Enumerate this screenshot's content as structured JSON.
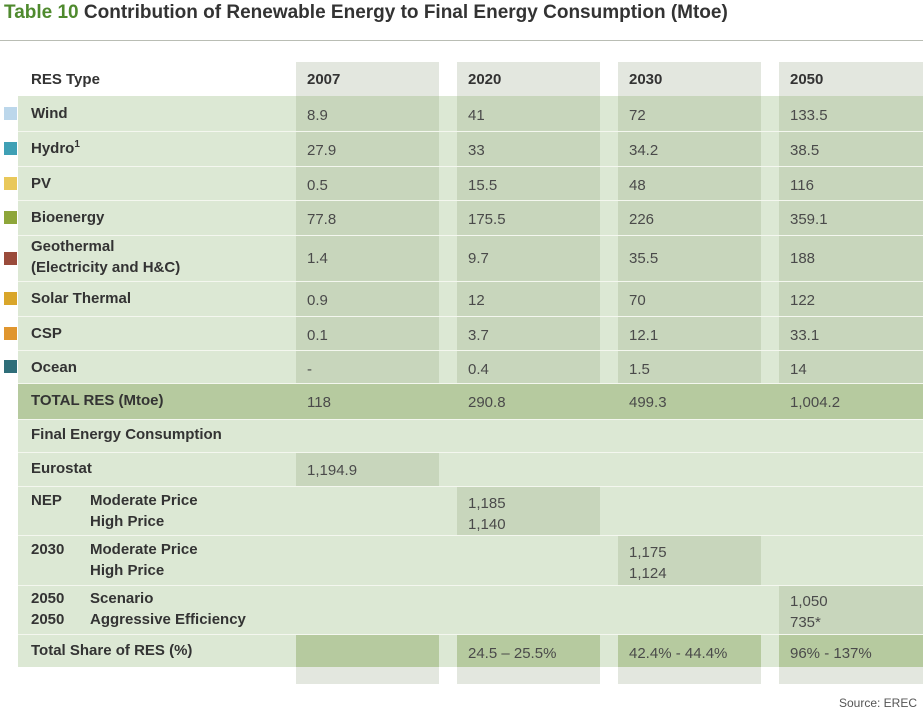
{
  "title": {
    "number": "Table 10",
    "text": "Contribution of Renewable Energy to Final Energy Consumption (Mtoe)"
  },
  "colors": {
    "band": "#dce8d4",
    "column": "#c8d6bc",
    "header_column": "#e3e7df",
    "total": "#b6ca9f"
  },
  "header": {
    "label": "RES Type",
    "years": [
      "2007",
      "2020",
      "2030",
      "2050"
    ]
  },
  "rows": [
    {
      "label": "Wind",
      "swatch": "#bcd7eb",
      "values": [
        "8.9",
        "41",
        "72",
        "133.5"
      ]
    },
    {
      "label": "Hydro",
      "sup": "1",
      "swatch": "#3fa0b5",
      "values": [
        "27.9",
        "33",
        "34.2",
        "38.5"
      ]
    },
    {
      "label": "PV",
      "swatch": "#e9c85a",
      "values": [
        "0.5",
        "15.5",
        "48",
        "116"
      ]
    },
    {
      "label": "Bioenergy",
      "swatch": "#8ea63a",
      "values": [
        "77.8",
        "175.5",
        "226",
        "359.1"
      ]
    },
    {
      "label": "Geothermal",
      "label2": "(Electricity and H&C)",
      "swatch": "#9a4b3b",
      "values": [
        "1.4",
        "9.7",
        "35.5",
        "188"
      ]
    },
    {
      "label": "Solar Thermal",
      "swatch": "#d9a62a",
      "values": [
        "0.9",
        "12",
        "70",
        "122"
      ]
    },
    {
      "label": "CSP",
      "swatch": "#e0962f",
      "values": [
        "0.1",
        "3.7",
        "12.1",
        "33.1"
      ]
    },
    {
      "label": "Ocean",
      "swatch": "#2f6e79",
      "values": [
        "-",
        "0.4",
        "1.5",
        "14"
      ]
    }
  ],
  "total": {
    "label": "TOTAL RES (Mtoe)",
    "values": [
      "118",
      "290.8",
      "499.3",
      "1,004.2"
    ]
  },
  "fec": {
    "heading": "Final Energy Consumption",
    "eurostat": {
      "label": "Eurostat",
      "value": "1,194.9"
    },
    "nep": {
      "prefix": "NEP",
      "line1": "Moderate Price",
      "line2": "High Price",
      "value1": "1,185",
      "value2": "1,140"
    },
    "y2030": {
      "prefix": "2030",
      "line1": "Moderate Price",
      "line2": "High Price",
      "value1": "1,175",
      "value2": "1,124"
    },
    "y2050": {
      "prefix1": "2050",
      "prefix2": "2050",
      "line1": "Scenario",
      "line2": "Aggressive Efficiency",
      "value1": "1,050",
      "value2": "735*"
    }
  },
  "share": {
    "label": "Total Share of RES (%)",
    "values": [
      "",
      "24.5 – 25.5%",
      "42.4% - 44.4%",
      "96% - 137%"
    ]
  },
  "source": "Source: EREC"
}
